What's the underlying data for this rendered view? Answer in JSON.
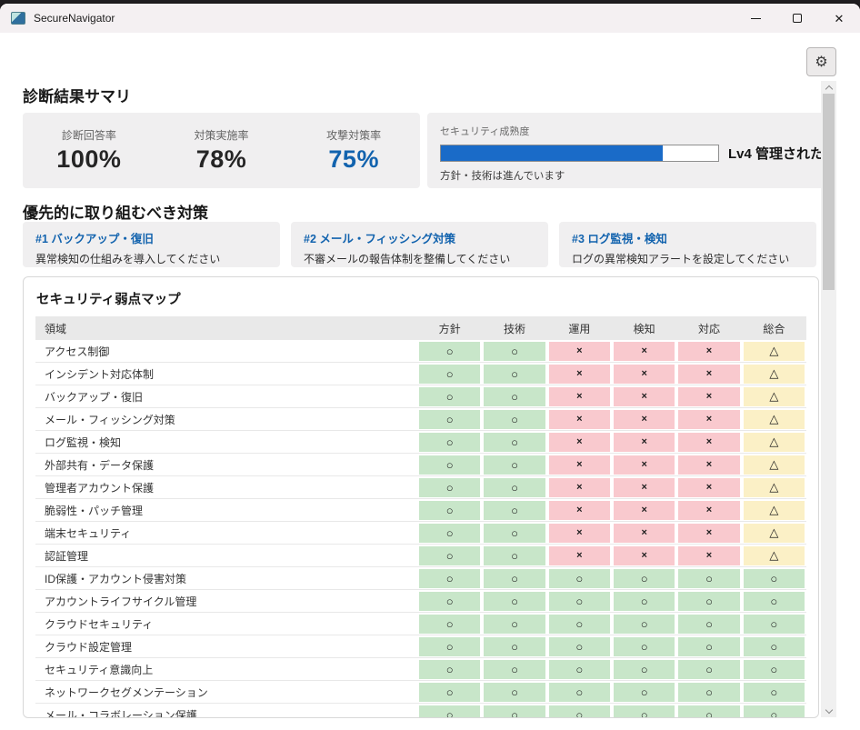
{
  "colors": {
    "accent": "#1263ae",
    "bar": "#1a6bc8",
    "ok": "#c8e6c9",
    "ng": "#f9c9ce",
    "warn": "#fbf0c6"
  },
  "icons": {
    "gear": "⚙"
  },
  "window": {
    "title": "SecureNavigator",
    "close_glyph": "✕"
  },
  "summary": {
    "heading": "診断結果サマリ",
    "stats": [
      {
        "label": "診断回答率",
        "value": "100%"
      },
      {
        "label": "対策実施率",
        "value": "78%"
      },
      {
        "label": "攻撃対策率",
        "value": "75%"
      }
    ],
    "maturity": {
      "label": "セキュリティ成熟度",
      "percent": 80,
      "level": "Lv4 管理された",
      "note": "方針・技術は進んでいます"
    }
  },
  "priorities": {
    "heading": "優先的に取り組むべき対策",
    "items": [
      {
        "rank": "#1",
        "title": "バックアップ・復旧",
        "desc": "異常検知の仕組みを導入してください"
      },
      {
        "rank": "#2",
        "title": "メール・フィッシング対策",
        "desc": "不審メールの報告体制を整備してください"
      },
      {
        "rank": "#3",
        "title": "ログ監視・検知",
        "desc": "ログの異常検知アラートを設定してください"
      }
    ]
  },
  "weakness_map": {
    "title": "セキュリティ弱点マップ",
    "columns": [
      "領域",
      "方針",
      "技術",
      "運用",
      "検知",
      "対応",
      "総合"
    ],
    "symbols": {
      "ok": "○",
      "ng": "×",
      "warn": "△"
    },
    "rows": [
      {
        "area": "アクセス制御",
        "cells": [
          "ok",
          "ok",
          "ng",
          "ng",
          "ng",
          "warn"
        ]
      },
      {
        "area": "インシデント対応体制",
        "cells": [
          "ok",
          "ok",
          "ng",
          "ng",
          "ng",
          "warn"
        ]
      },
      {
        "area": "バックアップ・復旧",
        "cells": [
          "ok",
          "ok",
          "ng",
          "ng",
          "ng",
          "warn"
        ]
      },
      {
        "area": "メール・フィッシング対策",
        "cells": [
          "ok",
          "ok",
          "ng",
          "ng",
          "ng",
          "warn"
        ]
      },
      {
        "area": "ログ監視・検知",
        "cells": [
          "ok",
          "ok",
          "ng",
          "ng",
          "ng",
          "warn"
        ]
      },
      {
        "area": "外部共有・データ保護",
        "cells": [
          "ok",
          "ok",
          "ng",
          "ng",
          "ng",
          "warn"
        ]
      },
      {
        "area": "管理者アカウント保護",
        "cells": [
          "ok",
          "ok",
          "ng",
          "ng",
          "ng",
          "warn"
        ]
      },
      {
        "area": "脆弱性・パッチ管理",
        "cells": [
          "ok",
          "ok",
          "ng",
          "ng",
          "ng",
          "warn"
        ]
      },
      {
        "area": "端末セキュリティ",
        "cells": [
          "ok",
          "ok",
          "ng",
          "ng",
          "ng",
          "warn"
        ]
      },
      {
        "area": "認証管理",
        "cells": [
          "ok",
          "ok",
          "ng",
          "ng",
          "ng",
          "warn"
        ]
      },
      {
        "area": "ID保護・アカウント侵害対策",
        "cells": [
          "ok",
          "ok",
          "ok",
          "ok",
          "ok",
          "ok"
        ]
      },
      {
        "area": "アカウントライフサイクル管理",
        "cells": [
          "ok",
          "ok",
          "ok",
          "ok",
          "ok",
          "ok"
        ]
      },
      {
        "area": "クラウドセキュリティ",
        "cells": [
          "ok",
          "ok",
          "ok",
          "ok",
          "ok",
          "ok"
        ]
      },
      {
        "area": "クラウド設定管理",
        "cells": [
          "ok",
          "ok",
          "ok",
          "ok",
          "ok",
          "ok"
        ]
      },
      {
        "area": "セキュリティ意識向上",
        "cells": [
          "ok",
          "ok",
          "ok",
          "ok",
          "ok",
          "ok"
        ]
      },
      {
        "area": "ネットワークセグメンテーション",
        "cells": [
          "ok",
          "ok",
          "ok",
          "ok",
          "ok",
          "ok"
        ]
      },
      {
        "area": "メール・コラボレーション保護",
        "cells": [
          "ok",
          "ok",
          "ok",
          "ok",
          "ok",
          "ok"
        ]
      }
    ]
  }
}
